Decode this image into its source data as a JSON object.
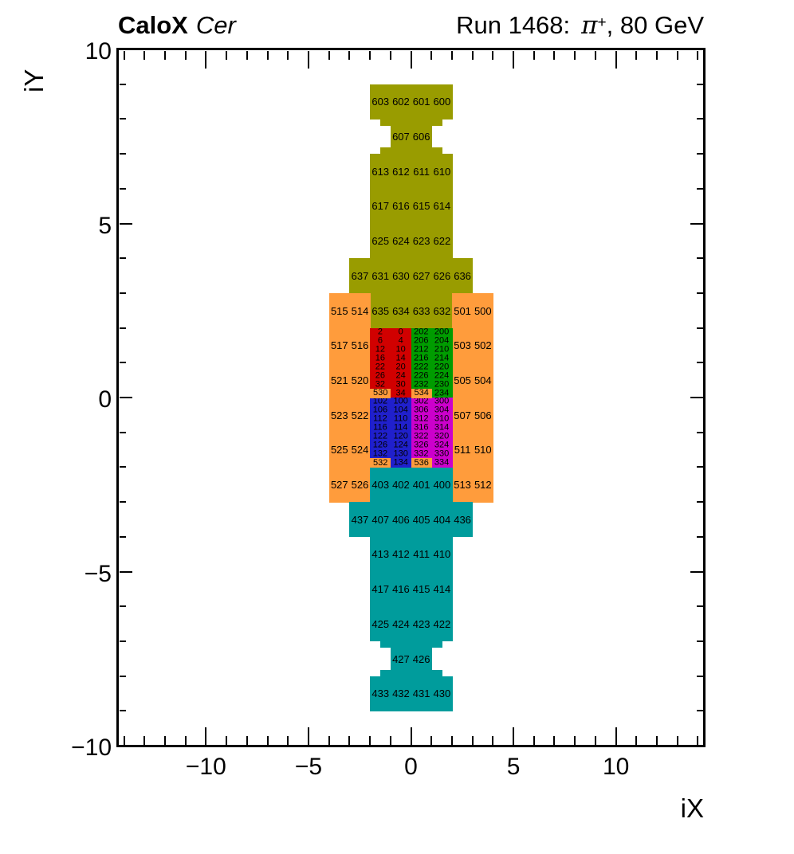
{
  "header": {
    "experiment": "CaloX",
    "detector": "Cer",
    "run_prefix": "Run 1468:",
    "particle": "π",
    "particle_charge": "+",
    "energy_suffix": ", 80 GeV"
  },
  "axes": {
    "x_label": "iX",
    "y_label": "iY",
    "x_major": [
      {
        "v": -10,
        "t": "−10"
      },
      {
        "v": -5,
        "t": "−5"
      },
      {
        "v": 0,
        "t": "0"
      },
      {
        "v": 5,
        "t": "5"
      },
      {
        "v": 10,
        "t": "10"
      }
    ],
    "y_major": [
      {
        "v": -10,
        "t": "−10"
      },
      {
        "v": -5,
        "t": "−5"
      },
      {
        "v": 0,
        "t": "0"
      },
      {
        "v": 5,
        "t": "5"
      },
      {
        "v": 10,
        "t": "10"
      }
    ],
    "x_minor_range": [
      -14,
      14
    ],
    "y_minor_range": [
      -10,
      10
    ]
  },
  "chart_data": {
    "type": "heatmap",
    "title": "CaloX Cer — Run 1468: π+, 80 GeV",
    "xlabel": "iX",
    "ylabel": "iY",
    "xlim": [
      -14.3,
      14.3
    ],
    "ylim": [
      -10,
      10
    ],
    "grid": false,
    "colors": {
      "olive": "#999c00",
      "orange": "#ff9c3c",
      "red": "#d10000",
      "green": "#009c00",
      "blue": "#2020cc",
      "magenta": "#cc00cc",
      "teal": "#009c9c"
    },
    "unit_cells": [
      [
        "olive",
        -2,
        9,
        "603"
      ],
      [
        "olive",
        -1,
        9,
        "602"
      ],
      [
        "olive",
        0,
        9,
        "601"
      ],
      [
        "olive",
        1,
        9,
        "600"
      ],
      [
        "olive",
        -1,
        8,
        "607"
      ],
      [
        "olive",
        0,
        8,
        "606"
      ],
      [
        "olive",
        -2,
        7,
        "613"
      ],
      [
        "olive",
        -1,
        7,
        "612"
      ],
      [
        "olive",
        0,
        7,
        "611"
      ],
      [
        "olive",
        1,
        7,
        "610"
      ],
      [
        "olive",
        -2,
        6,
        "617"
      ],
      [
        "olive",
        -1,
        6,
        "616"
      ],
      [
        "olive",
        0,
        6,
        "615"
      ],
      [
        "olive",
        1,
        6,
        "614"
      ],
      [
        "olive",
        -2,
        5,
        "625"
      ],
      [
        "olive",
        -1,
        5,
        "624"
      ],
      [
        "olive",
        0,
        5,
        "623"
      ],
      [
        "olive",
        1,
        5,
        "622"
      ],
      [
        "olive",
        -3,
        4,
        "637"
      ],
      [
        "olive",
        -2,
        4,
        "631"
      ],
      [
        "olive",
        -1,
        4,
        "630"
      ],
      [
        "olive",
        0,
        4,
        "627"
      ],
      [
        "olive",
        1,
        4,
        "626"
      ],
      [
        "olive",
        2,
        4,
        "636"
      ],
      [
        "olive",
        -2,
        3,
        "635"
      ],
      [
        "olive",
        -1,
        3,
        "634"
      ],
      [
        "olive",
        0,
        3,
        "633"
      ],
      [
        "olive",
        1,
        3,
        "632"
      ],
      [
        "orange",
        -4,
        3,
        "515"
      ],
      [
        "orange",
        -3,
        3,
        "514"
      ],
      [
        "orange",
        2,
        3,
        "501"
      ],
      [
        "orange",
        3,
        3,
        "500"
      ],
      [
        "orange",
        -4,
        2,
        "517"
      ],
      [
        "orange",
        -3,
        2,
        "516"
      ],
      [
        "orange",
        2,
        2,
        "503"
      ],
      [
        "orange",
        3,
        2,
        "502"
      ],
      [
        "orange",
        -4,
        1,
        "521"
      ],
      [
        "orange",
        -3,
        1,
        "520"
      ],
      [
        "orange",
        2,
        1,
        "505"
      ],
      [
        "orange",
        3,
        1,
        "504"
      ],
      [
        "orange",
        -4,
        0,
        "523"
      ],
      [
        "orange",
        -3,
        0,
        "522"
      ],
      [
        "orange",
        2,
        0,
        "507"
      ],
      [
        "orange",
        3,
        0,
        "506"
      ],
      [
        "orange",
        -4,
        -1,
        "525"
      ],
      [
        "orange",
        -3,
        -1,
        "524"
      ],
      [
        "orange",
        2,
        -1,
        "511"
      ],
      [
        "orange",
        3,
        -1,
        "510"
      ],
      [
        "orange",
        -4,
        -2,
        "527"
      ],
      [
        "orange",
        -3,
        -2,
        "526"
      ],
      [
        "orange",
        2,
        -2,
        "513"
      ],
      [
        "orange",
        3,
        -2,
        "512"
      ],
      [
        "teal",
        -2,
        -2,
        "403"
      ],
      [
        "teal",
        -1,
        -2,
        "402"
      ],
      [
        "teal",
        0,
        -2,
        "401"
      ],
      [
        "teal",
        1,
        -2,
        "400"
      ],
      [
        "teal",
        -3,
        -3,
        "437"
      ],
      [
        "teal",
        -2,
        -3,
        "407"
      ],
      [
        "teal",
        -1,
        -3,
        "406"
      ],
      [
        "teal",
        0,
        -3,
        "405"
      ],
      [
        "teal",
        1,
        -3,
        "404"
      ],
      [
        "teal",
        2,
        -3,
        "436"
      ],
      [
        "teal",
        -2,
        -4,
        "413"
      ],
      [
        "teal",
        -1,
        -4,
        "412"
      ],
      [
        "teal",
        0,
        -4,
        "411"
      ],
      [
        "teal",
        1,
        -4,
        "410"
      ],
      [
        "teal",
        -2,
        -5,
        "417"
      ],
      [
        "teal",
        -1,
        -5,
        "416"
      ],
      [
        "teal",
        0,
        -5,
        "415"
      ],
      [
        "teal",
        1,
        -5,
        "414"
      ],
      [
        "teal",
        -2,
        -6,
        "425"
      ],
      [
        "teal",
        -1,
        -6,
        "424"
      ],
      [
        "teal",
        0,
        -6,
        "423"
      ],
      [
        "teal",
        1,
        -6,
        "422"
      ],
      [
        "teal",
        -1,
        -7,
        "427"
      ],
      [
        "teal",
        0,
        -7,
        "426"
      ],
      [
        "teal",
        -2,
        -8,
        "433"
      ],
      [
        "teal",
        -1,
        -8,
        "432"
      ],
      [
        "teal",
        0,
        -8,
        "431"
      ],
      [
        "teal",
        1,
        -8,
        "430"
      ]
    ],
    "shape_tabs": [
      [
        "olive",
        -1.5,
        8,
        0.5,
        0.18
      ],
      [
        "olive",
        1,
        8,
        0.5,
        0.18
      ],
      [
        "olive",
        -1.5,
        7.18,
        0.5,
        0.18
      ],
      [
        "olive",
        1,
        7.18,
        0.5,
        0.18
      ],
      [
        "teal",
        -1.5,
        -7,
        0.5,
        0.18
      ],
      [
        "teal",
        1,
        -7,
        0.5,
        0.18
      ],
      [
        "teal",
        -1.5,
        -7.82,
        0.5,
        0.18
      ],
      [
        "teal",
        1,
        -7.82,
        0.5,
        0.18
      ]
    ],
    "fine_blocks": [
      {
        "color": "red",
        "x": -2,
        "y": 2,
        "w": 2,
        "h": 2,
        "cols": [
          -1.5,
          -0.5
        ],
        "row_h": 0.25,
        "rows": [
          [
            "2",
            "0"
          ],
          [
            "6",
            "4"
          ],
          [
            "12",
            "10"
          ],
          [
            "16",
            "14"
          ],
          [
            "22",
            "20"
          ],
          [
            "26",
            "24"
          ],
          [
            "32",
            "30"
          ],
          [
            "",
            "34"
          ]
        ]
      },
      {
        "color": "green",
        "x": 0,
        "y": 2,
        "w": 2,
        "h": 2,
        "cols": [
          0.5,
          1.5
        ],
        "row_h": 0.25,
        "rows": [
          [
            "202",
            "200"
          ],
          [
            "206",
            "204"
          ],
          [
            "212",
            "210"
          ],
          [
            "216",
            "214"
          ],
          [
            "222",
            "220"
          ],
          [
            "226",
            "224"
          ],
          [
            "232",
            "230"
          ],
          [
            "",
            "234"
          ]
        ]
      },
      {
        "color": "blue",
        "x": -2,
        "y": 0,
        "w": 2,
        "h": 2,
        "cols": [
          -1.5,
          -0.5
        ],
        "row_h": 0.25,
        "rows": [
          [
            "102",
            "100"
          ],
          [
            "106",
            "104"
          ],
          [
            "112",
            "110"
          ],
          [
            "116",
            "114"
          ],
          [
            "122",
            "120"
          ],
          [
            "126",
            "124"
          ],
          [
            "132",
            "130"
          ],
          [
            "",
            "134"
          ]
        ]
      },
      {
        "color": "magenta",
        "x": 0,
        "y": 0,
        "w": 2,
        "h": 2,
        "cols": [
          0.5,
          1.5
        ],
        "row_h": 0.25,
        "rows": [
          [
            "302",
            "300"
          ],
          [
            "306",
            "304"
          ],
          [
            "312",
            "310"
          ],
          [
            "316",
            "314"
          ],
          [
            "322",
            "320"
          ],
          [
            "326",
            "324"
          ],
          [
            "332",
            "330"
          ],
          [
            "",
            "334"
          ]
        ]
      }
    ],
    "overlay_cells": [
      [
        "orange",
        -2,
        0.25,
        1,
        0.25,
        "530"
      ],
      [
        "orange",
        0,
        0.25,
        1,
        0.25,
        "534"
      ],
      [
        "orange",
        -2,
        -1.75,
        1,
        0.25,
        "532"
      ],
      [
        "orange",
        0,
        -1.75,
        1,
        0.25,
        "536"
      ]
    ]
  }
}
